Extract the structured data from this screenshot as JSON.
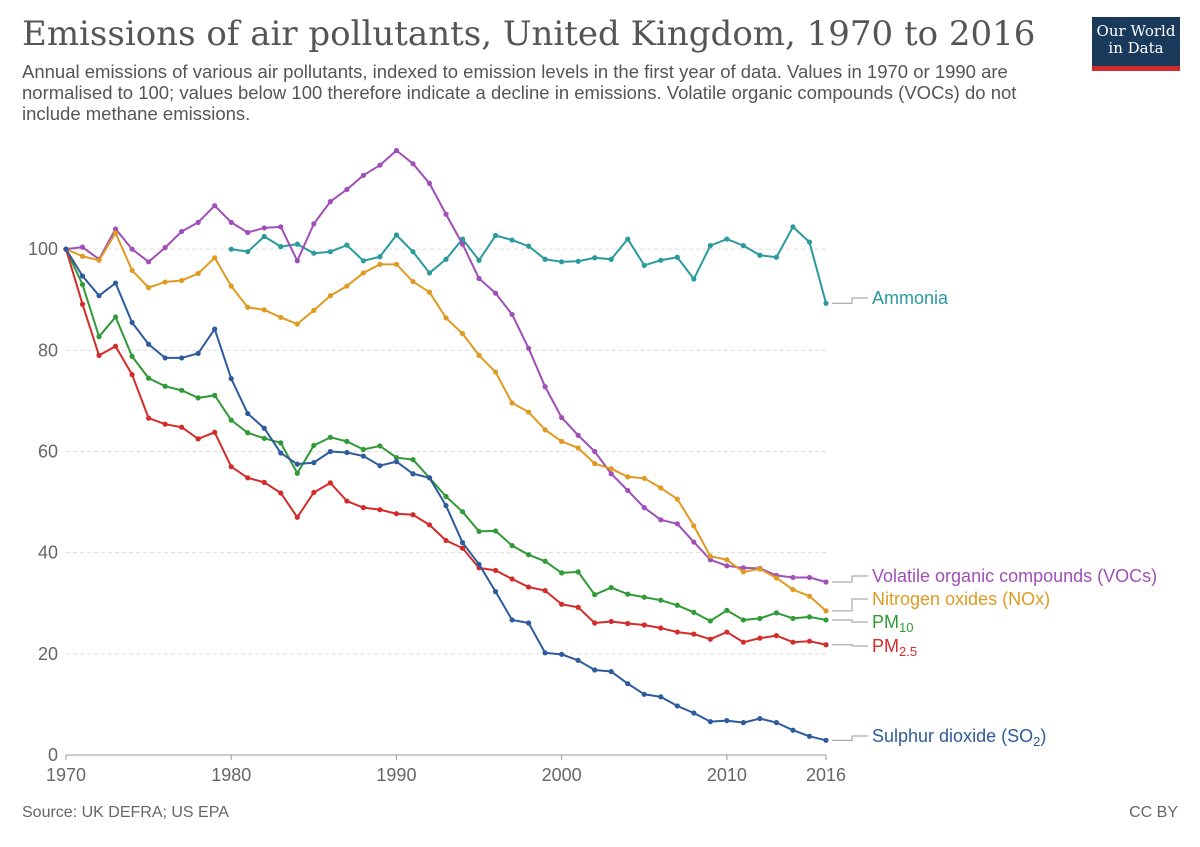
{
  "header": {
    "title": "Emissions of air pollutants, United Kingdom, 1970 to 2016",
    "subtitle": "Annual emissions of various air pollutants, indexed to emission levels in the first year of data. Values in 1970 or 1990 are normalised to 100; values below 100 therefore indicate a decline in emissions. Volatile organic compounds (VOCs) do not include methane emissions."
  },
  "logo": {
    "line1": "Our World",
    "line2": "in Data"
  },
  "footer": {
    "source": "Source: UK DEFRA; US EPA",
    "license": "CC BY"
  },
  "chart_data": {
    "type": "line",
    "xlim": [
      1970,
      2016
    ],
    "ylim": [
      0,
      120
    ],
    "x_ticks": [
      "1970",
      "1980",
      "1990",
      "2000",
      "2010",
      "2016"
    ],
    "y_ticks": [
      "0",
      "20",
      "40",
      "60",
      "80",
      "100"
    ],
    "grid": "horizontal dashed",
    "legend": "line-end labels on right",
    "series": [
      {
        "name": "Ammonia",
        "name_sub": "",
        "color": "#2a9a9d",
        "label_offset": 0,
        "x_start": 1980,
        "values": [
          100,
          99.5,
          102.5,
          100.5,
          101,
          99.2,
          99.5,
          100.8,
          97.7,
          98.5,
          102.8,
          99.5,
          95.3,
          98,
          102,
          97.8,
          102.7,
          101.8,
          100.6,
          98,
          97.5,
          97.6,
          98.3,
          98,
          102,
          96.8,
          97.8,
          98.4,
          94.1,
          100.7,
          102,
          100.7,
          98.8,
          98.4,
          104.4,
          101.4,
          89.3
        ]
      },
      {
        "name": "Volatile organic compounds (VOCs)",
        "name_sub": "",
        "color": "#a04fb8",
        "label_offset": 0,
        "x_start": 1970,
        "values": [
          100,
          100.4,
          98,
          104,
          100,
          97.5,
          100.3,
          103.5,
          105.3,
          108.6,
          105.3,
          103.3,
          104.2,
          104.4,
          97.7,
          105,
          109.4,
          111.8,
          114.6,
          116.6,
          119.5,
          116.9,
          113,
          106.9,
          101,
          94.2,
          91.3,
          87.1,
          80.4,
          72.8,
          66.7,
          63.2,
          60,
          55.6,
          52.3,
          48.9,
          46.5,
          45.7,
          42.1,
          38.6,
          37.4,
          37,
          36.9,
          35.5,
          35.1,
          35.1,
          34.2
        ]
      },
      {
        "name": "Nitrogen oxides (NOx)",
        "name_sub": "",
        "color": "#e09a20",
        "label_offset": 0,
        "x_start": 1970,
        "values": [
          100,
          98.6,
          97.8,
          103.2,
          95.8,
          92.4,
          93.5,
          93.8,
          95.2,
          98.3,
          92.7,
          88.5,
          88,
          86.5,
          85.2,
          87.9,
          90.8,
          92.7,
          95.3,
          97,
          97,
          93.6,
          91.5,
          86.4,
          83.3,
          79,
          75.7,
          69.6,
          67.8,
          64.3,
          62,
          60.7,
          57.6,
          56.6,
          55,
          54.7,
          52.8,
          50.6,
          45.3,
          39.3,
          38.6,
          36.2,
          36.8,
          35,
          32.7,
          31.4,
          28.5
        ]
      },
      {
        "name": "PM",
        "name_sub": "10",
        "color": "#2f9a36",
        "label_offset": 0,
        "x_start": 1970,
        "values": [
          100,
          93,
          82.7,
          86.6,
          78.8,
          74.5,
          72.9,
          72.1,
          70.6,
          71.1,
          66.2,
          63.7,
          62.6,
          61.7,
          55.7,
          61.2,
          62.8,
          62,
          60.4,
          61.1,
          58.8,
          58.4,
          54.8,
          51.1,
          48.1,
          44.2,
          44.3,
          41.4,
          39.6,
          38.3,
          36,
          36.2,
          31.7,
          33.1,
          31.8,
          31.2,
          30.6,
          29.6,
          28.2,
          26.5,
          28.6,
          26.7,
          27,
          28.1,
          27,
          27.3,
          26.7
        ]
      },
      {
        "name": "PM",
        "name_sub": "2.5",
        "color": "#d42b2b",
        "label_offset": 0,
        "x_start": 1970,
        "values": [
          100,
          89.1,
          79,
          80.8,
          75.2,
          66.6,
          65.4,
          64.8,
          62.5,
          63.8,
          57,
          54.8,
          53.9,
          51.8,
          47,
          51.9,
          53.8,
          50.2,
          48.9,
          48.5,
          47.7,
          47.5,
          45.5,
          42.4,
          40.9,
          37,
          36.5,
          34.8,
          33.2,
          32.5,
          29.8,
          29.2,
          26.1,
          26.4,
          26,
          25.7,
          25.1,
          24.3,
          23.9,
          22.9,
          24.3,
          22.3,
          23.1,
          23.6,
          22.3,
          22.5,
          21.8
        ]
      },
      {
        "name": "Sulphur dioxide (SO",
        "name_sub": "2",
        "name_suffix": ")",
        "color": "#2e5a9e",
        "label_offset": 0,
        "x_start": 1970,
        "values": [
          100,
          94.7,
          90.8,
          93.3,
          85.5,
          81.2,
          78.5,
          78.5,
          79.4,
          84.2,
          74.4,
          67.5,
          64.6,
          59.7,
          57.5,
          57.8,
          60,
          59.8,
          59.1,
          57.2,
          58,
          55.6,
          54.8,
          49.3,
          42,
          37.7,
          32.3,
          26.7,
          26.1,
          20.2,
          19.9,
          18.7,
          16.8,
          16.5,
          14.1,
          12,
          11.5,
          9.7,
          8.3,
          6.6,
          6.8,
          6.4,
          7.2,
          6.4,
          4.9,
          3.7,
          2.9
        ]
      }
    ]
  }
}
